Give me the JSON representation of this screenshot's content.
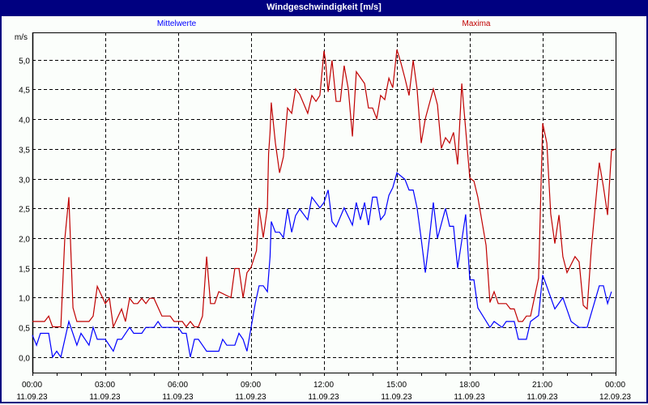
{
  "window": {
    "title": "Windgeschwindigkeit [m/s]"
  },
  "colors": {
    "titlebar": "#000080",
    "mean": "#0000ff",
    "max": "#c00000",
    "background": "#fbfefb"
  },
  "chart_data": {
    "type": "line",
    "title": "Windgeschwindigkeit [m/s]",
    "ylabel": "m/s",
    "xlabel": "",
    "xunit": "hours since 11.09.23 00:00",
    "xlim": [
      0,
      24
    ],
    "ylim": [
      -0.26,
      5.46
    ],
    "grid": true,
    "yticks": [
      {
        "v": 0,
        "label": "0,0"
      },
      {
        "v": 0.5,
        "label": "0,5"
      },
      {
        "v": 1,
        "label": "1,0"
      },
      {
        "v": 1.5,
        "label": "1,5"
      },
      {
        "v": 2,
        "label": "2,0"
      },
      {
        "v": 2.5,
        "label": "2,5"
      },
      {
        "v": 3,
        "label": "3,0"
      },
      {
        "v": 3.5,
        "label": "3,5"
      },
      {
        "v": 4,
        "label": "4,0"
      },
      {
        "v": 4.5,
        "label": "4,5"
      },
      {
        "v": 5,
        "label": "5,0"
      }
    ],
    "xticks": [
      {
        "h": 0,
        "time": "00:00",
        "date": "11.09.23"
      },
      {
        "h": 3,
        "time": "03:00",
        "date": "11.09.23"
      },
      {
        "h": 6,
        "time": "06:00",
        "date": "11.09.23"
      },
      {
        "h": 9,
        "time": "09:00",
        "date": "11.09.23"
      },
      {
        "h": 12,
        "time": "12:00",
        "date": "11.09.23"
      },
      {
        "h": 15,
        "time": "15:00",
        "date": "11.09.23"
      },
      {
        "h": 18,
        "time": "18:00",
        "date": "11.09.23"
      },
      {
        "h": 21,
        "time": "21:00",
        "date": "11.09.23"
      },
      {
        "h": 24,
        "time": "00:00",
        "date": "12.09.23"
      }
    ],
    "series": [
      {
        "name": "Mittelwerte",
        "legend_position": "top-left",
        "color": "#0000ff",
        "points": [
          [
            0,
            0.37
          ],
          [
            0.17,
            0.2
          ],
          [
            0.33,
            0.4
          ],
          [
            0.67,
            0.4
          ],
          [
            0.83,
            0.0
          ],
          [
            1.0,
            0.1
          ],
          [
            1.17,
            0.0
          ],
          [
            1.5,
            0.6
          ],
          [
            1.83,
            0.2
          ],
          [
            2.0,
            0.4
          ],
          [
            2.33,
            0.2
          ],
          [
            2.5,
            0.5
          ],
          [
            2.67,
            0.3
          ],
          [
            3.0,
            0.3
          ],
          [
            3.33,
            0.1
          ],
          [
            3.5,
            0.3
          ],
          [
            3.67,
            0.3
          ],
          [
            4.0,
            0.5
          ],
          [
            4.17,
            0.4
          ],
          [
            4.5,
            0.4
          ],
          [
            4.67,
            0.5
          ],
          [
            5.0,
            0.5
          ],
          [
            5.17,
            0.6
          ],
          [
            5.33,
            0.5
          ],
          [
            6.0,
            0.5
          ],
          [
            6.17,
            0.4
          ],
          [
            6.33,
            0.4
          ],
          [
            6.5,
            0.0
          ],
          [
            6.67,
            0.3
          ],
          [
            6.83,
            0.3
          ],
          [
            7.0,
            0.2
          ],
          [
            7.17,
            0.1
          ],
          [
            7.67,
            0.1
          ],
          [
            7.83,
            0.3
          ],
          [
            8.0,
            0.2
          ],
          [
            8.33,
            0.2
          ],
          [
            8.5,
            0.4
          ],
          [
            8.67,
            0.3
          ],
          [
            8.83,
            0.1
          ],
          [
            9.0,
            0.5
          ],
          [
            9.17,
            0.9
          ],
          [
            9.33,
            1.2
          ],
          [
            9.5,
            1.2
          ],
          [
            9.67,
            1.1
          ],
          [
            9.78,
            1.69
          ],
          [
            9.83,
            2.28
          ],
          [
            10.0,
            2.1
          ],
          [
            10.17,
            2.1
          ],
          [
            10.33,
            2.01
          ],
          [
            10.5,
            2.49
          ],
          [
            10.67,
            2.1
          ],
          [
            10.83,
            2.38
          ],
          [
            11.0,
            2.49
          ],
          [
            11.33,
            2.31
          ],
          [
            11.5,
            2.69
          ],
          [
            11.83,
            2.51
          ],
          [
            12.0,
            2.6
          ],
          [
            12.17,
            2.81
          ],
          [
            12.33,
            2.28
          ],
          [
            12.5,
            2.19
          ],
          [
            12.83,
            2.51
          ],
          [
            13.17,
            2.22
          ],
          [
            13.33,
            2.6
          ],
          [
            13.5,
            2.31
          ],
          [
            13.67,
            2.6
          ],
          [
            13.83,
            2.22
          ],
          [
            14.0,
            2.69
          ],
          [
            14.17,
            2.69
          ],
          [
            14.33,
            2.31
          ],
          [
            14.5,
            2.4
          ],
          [
            14.67,
            2.72
          ],
          [
            14.83,
            2.85
          ],
          [
            15.0,
            3.1
          ],
          [
            15.33,
            2.99
          ],
          [
            15.5,
            2.81
          ],
          [
            15.67,
            2.81
          ],
          [
            15.83,
            2.51
          ],
          [
            16.0,
            1.99
          ],
          [
            16.17,
            1.42
          ],
          [
            16.33,
            1.97
          ],
          [
            16.5,
            2.6
          ],
          [
            16.67,
            2.0
          ],
          [
            17.0,
            2.5
          ],
          [
            17.17,
            2.2
          ],
          [
            17.33,
            2.2
          ],
          [
            17.5,
            1.5
          ],
          [
            17.83,
            2.4
          ],
          [
            18.0,
            1.3
          ],
          [
            18.17,
            1.3
          ],
          [
            18.33,
            0.83
          ],
          [
            18.83,
            0.5
          ],
          [
            19.0,
            0.6
          ],
          [
            19.33,
            0.5
          ],
          [
            19.5,
            0.6
          ],
          [
            19.83,
            0.6
          ],
          [
            20.0,
            0.3
          ],
          [
            20.33,
            0.3
          ],
          [
            20.5,
            0.6
          ],
          [
            20.83,
            0.7
          ],
          [
            21.0,
            1.38
          ],
          [
            21.5,
            0.81
          ],
          [
            21.83,
            1.0
          ],
          [
            22.17,
            0.6
          ],
          [
            22.5,
            0.5
          ],
          [
            22.83,
            0.5
          ],
          [
            23.33,
            1.2
          ],
          [
            23.5,
            1.2
          ],
          [
            23.67,
            0.9
          ],
          [
            23.83,
            1.1
          ]
        ]
      },
      {
        "name": "Maxima",
        "legend_position": "top-right",
        "color": "#c00000",
        "points": [
          [
            0,
            0.6
          ],
          [
            0.5,
            0.6
          ],
          [
            0.67,
            0.69
          ],
          [
            0.83,
            0.51
          ],
          [
            1.17,
            0.51
          ],
          [
            1.33,
            1.97
          ],
          [
            1.5,
            2.69
          ],
          [
            1.67,
            0.83
          ],
          [
            1.83,
            0.6
          ],
          [
            2.33,
            0.6
          ],
          [
            2.5,
            0.69
          ],
          [
            2.67,
            1.19
          ],
          [
            3.0,
            0.9
          ],
          [
            3.17,
            0.99
          ],
          [
            3.33,
            0.51
          ],
          [
            3.67,
            0.81
          ],
          [
            3.83,
            0.6
          ],
          [
            4.0,
            0.99
          ],
          [
            4.17,
            0.9
          ],
          [
            4.33,
            0.9
          ],
          [
            4.5,
            0.99
          ],
          [
            4.67,
            0.9
          ],
          [
            4.83,
            0.99
          ],
          [
            5.0,
            0.99
          ],
          [
            5.33,
            0.69
          ],
          [
            5.67,
            0.69
          ],
          [
            5.83,
            0.6
          ],
          [
            6.17,
            0.6
          ],
          [
            6.33,
            0.51
          ],
          [
            6.5,
            0.6
          ],
          [
            6.67,
            0.51
          ],
          [
            6.83,
            0.51
          ],
          [
            7.0,
            0.69
          ],
          [
            7.17,
            1.69
          ],
          [
            7.33,
            0.9
          ],
          [
            7.5,
            0.9
          ],
          [
            7.67,
            1.1
          ],
          [
            8.17,
            1.0
          ],
          [
            8.33,
            1.49
          ],
          [
            8.5,
            1.49
          ],
          [
            8.67,
            1.0
          ],
          [
            8.83,
            1.42
          ],
          [
            9.0,
            1.51
          ],
          [
            9.22,
            1.79
          ],
          [
            9.33,
            2.51
          ],
          [
            9.5,
            2.01
          ],
          [
            9.67,
            2.51
          ],
          [
            9.72,
            3.42
          ],
          [
            9.78,
            3.78
          ],
          [
            9.83,
            4.28
          ],
          [
            10.0,
            3.6
          ],
          [
            10.17,
            3.1
          ],
          [
            10.33,
            3.37
          ],
          [
            10.5,
            4.19
          ],
          [
            10.67,
            4.1
          ],
          [
            10.83,
            4.51
          ],
          [
            11.0,
            4.42
          ],
          [
            11.33,
            4.1
          ],
          [
            11.5,
            4.4
          ],
          [
            11.67,
            4.3
          ],
          [
            11.83,
            4.4
          ],
          [
            12.0,
            5.15
          ],
          [
            12.06,
            4.99
          ],
          [
            12.17,
            4.46
          ],
          [
            12.33,
            4.99
          ],
          [
            12.5,
            4.3
          ],
          [
            12.67,
            4.3
          ],
          [
            12.83,
            4.9
          ],
          [
            13.0,
            4.51
          ],
          [
            13.17,
            3.71
          ],
          [
            13.33,
            4.8
          ],
          [
            13.67,
            4.6
          ],
          [
            13.83,
            4.19
          ],
          [
            14.0,
            4.19
          ],
          [
            14.17,
            4.01
          ],
          [
            14.33,
            4.4
          ],
          [
            14.5,
            4.33
          ],
          [
            14.67,
            4.69
          ],
          [
            14.83,
            4.53
          ],
          [
            15.0,
            5.17
          ],
          [
            15.17,
            4.94
          ],
          [
            15.33,
            4.69
          ],
          [
            15.5,
            4.4
          ],
          [
            15.67,
            4.99
          ],
          [
            15.83,
            4.51
          ],
          [
            16.0,
            3.6
          ],
          [
            16.17,
            4.01
          ],
          [
            16.5,
            4.51
          ],
          [
            16.67,
            4.24
          ],
          [
            16.83,
            3.51
          ],
          [
            17.0,
            3.69
          ],
          [
            17.17,
            3.6
          ],
          [
            17.33,
            3.78
          ],
          [
            17.5,
            3.24
          ],
          [
            17.67,
            4.6
          ],
          [
            18.0,
            3.01
          ],
          [
            18.17,
            2.96
          ],
          [
            18.33,
            2.69
          ],
          [
            18.67,
            1.88
          ],
          [
            18.83,
            0.92
          ],
          [
            19.0,
            1.1
          ],
          [
            19.17,
            0.9
          ],
          [
            19.5,
            0.9
          ],
          [
            19.67,
            0.81
          ],
          [
            19.83,
            0.81
          ],
          [
            20.0,
            0.6
          ],
          [
            20.17,
            0.6
          ],
          [
            20.33,
            0.69
          ],
          [
            20.5,
            0.69
          ],
          [
            20.83,
            1.33
          ],
          [
            21.0,
            3.93
          ],
          [
            21.17,
            3.6
          ],
          [
            21.33,
            2.41
          ],
          [
            21.5,
            1.91
          ],
          [
            21.67,
            2.39
          ],
          [
            21.83,
            1.69
          ],
          [
            22.0,
            1.42
          ],
          [
            22.33,
            1.69
          ],
          [
            22.5,
            1.6
          ],
          [
            22.67,
            0.87
          ],
          [
            22.83,
            0.81
          ],
          [
            23.0,
            1.82
          ],
          [
            23.33,
            3.27
          ],
          [
            23.5,
            2.86
          ],
          [
            23.67,
            2.39
          ],
          [
            23.83,
            3.47
          ],
          [
            24.0,
            3.5
          ]
        ]
      }
    ]
  }
}
